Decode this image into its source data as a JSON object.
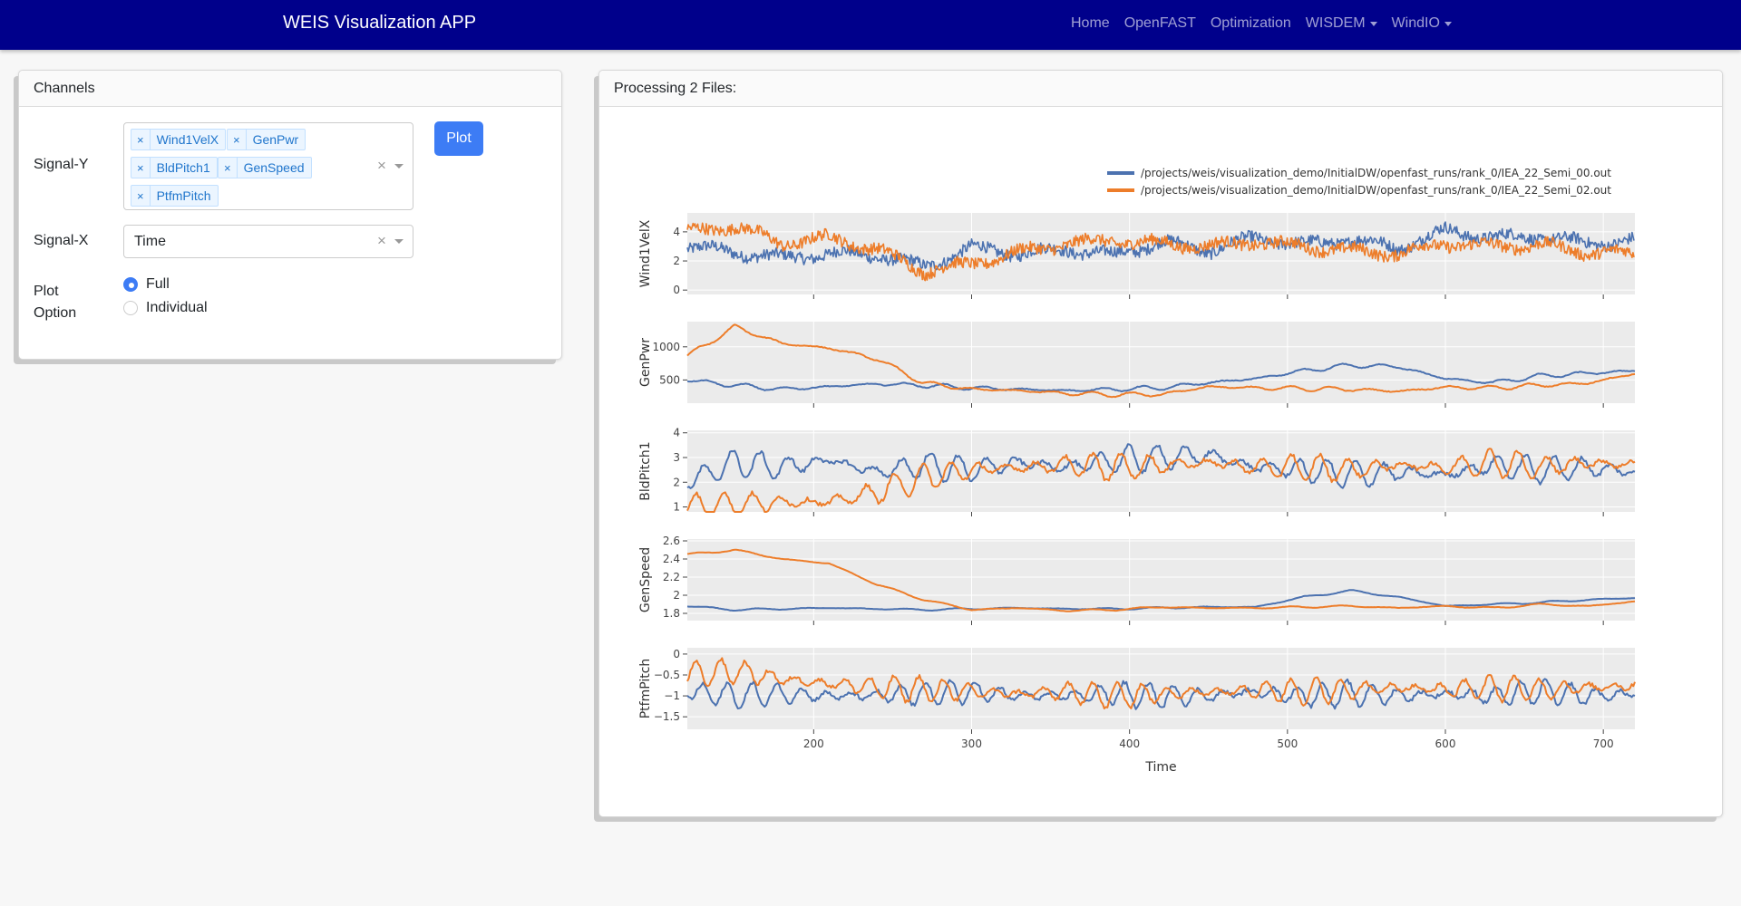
{
  "app": {
    "title": "WEIS Visualization APP",
    "nav": [
      {
        "label": "Home",
        "dropdown": false
      },
      {
        "label": "OpenFAST",
        "dropdown": false
      },
      {
        "label": "Optimization",
        "dropdown": false
      },
      {
        "label": "WISDEM",
        "dropdown": true
      },
      {
        "label": "WindIO",
        "dropdown": true
      }
    ]
  },
  "channels": {
    "header": "Channels",
    "signal_y": {
      "label": "Signal-Y",
      "selected": [
        "Wind1VelX",
        "GenPwr",
        "BldPitch1",
        "GenSpeed",
        "PtfmPitch"
      ]
    },
    "signal_x": {
      "label": "Signal-X",
      "selected": "Time"
    },
    "plot_button": "Plot",
    "plot_option": {
      "label_line1": "Plot",
      "label_line2": "Option",
      "options": [
        "Full",
        "Individual"
      ],
      "selected": "Full"
    }
  },
  "plot_panel": {
    "header": "Processing 2 Files:",
    "colors": {
      "series_0": "#4c72b0",
      "series_1": "#ed7d2a"
    },
    "legend_placement": "top-right"
  },
  "chart_data": {
    "type": "line",
    "layout": "stacked-subplots",
    "shared_x": true,
    "xlabel": "Time",
    "xlim": [
      120,
      720
    ],
    "xticks": [
      200,
      300,
      400,
      500,
      600,
      700
    ],
    "grid": true,
    "legend": [
      "/projects/weis/visualization_demo/InitialDW/openfast_runs/rank_0/IEA_22_Semi_00.out",
      "/projects/weis/visualization_demo/InitialDW/openfast_runs/rank_0/IEA_22_Semi_02.out"
    ],
    "subplots": [
      {
        "ylabel": "Wind1VelX",
        "ylim": [
          -0.3,
          5.3
        ],
        "yticks": [
          {
            "v": 0,
            "t": "0"
          },
          {
            "v": 2,
            "t": "2"
          },
          {
            "v": 4,
            "t": "4"
          }
        ],
        "series": [
          {
            "x": [
              120,
              150,
              180,
              210,
              240,
              270,
              300,
              330,
              360,
              390,
              420,
              450,
              480,
              510,
              540,
              570,
              600,
              630,
              660,
              690,
              720
            ],
            "y": [
              3.0,
              2.6,
              2.2,
              2.5,
              2.4,
              1.6,
              2.9,
              2.5,
              2.8,
              2.4,
              3.3,
              2.7,
              3.6,
              3.1,
              3.5,
              2.9,
              4.1,
              3.6,
              3.7,
              3.2,
              3.4
            ]
          },
          {
            "x": [
              120,
              150,
              180,
              210,
              240,
              270,
              300,
              330,
              360,
              390,
              420,
              450,
              480,
              510,
              540,
              570,
              600,
              630,
              660,
              690,
              720
            ],
            "y": [
              4.0,
              4.4,
              3.2,
              3.6,
              2.8,
              1.3,
              1.8,
              2.6,
              3.2,
              3.4,
              3.2,
              3.0,
              3.3,
              3.0,
              2.7,
              2.5,
              3.2,
              3.0,
              3.1,
              2.6,
              2.5
            ]
          }
        ]
      },
      {
        "ylabel": "GenPwr",
        "ylim": [
          150,
          1380
        ],
        "yticks": [
          {
            "v": 500,
            "t": "500"
          },
          {
            "v": 1000,
            "t": "1000"
          }
        ],
        "series": [
          {
            "x": [
              120,
              150,
              180,
              210,
              240,
              270,
              300,
              330,
              360,
              390,
              420,
              450,
              480,
              510,
              540,
              570,
              600,
              630,
              660,
              690,
              720
            ],
            "y": [
              500,
              420,
              360,
              400,
              440,
              420,
              380,
              360,
              340,
              360,
              380,
              460,
              520,
              640,
              720,
              700,
              520,
              460,
              560,
              600,
              640
            ]
          },
          {
            "x": [
              120,
              150,
              180,
              210,
              240,
              270,
              300,
              330,
              360,
              390,
              420,
              450,
              480,
              510,
              540,
              570,
              600,
              630,
              660,
              690,
              720
            ],
            "y": [
              860,
              1300,
              1050,
              980,
              820,
              450,
              360,
              340,
              300,
              280,
              280,
              400,
              380,
              370,
              360,
              330,
              390,
              380,
              420,
              450,
              600
            ]
          }
        ]
      },
      {
        "ylabel": "BldPitch1",
        "ylim": [
          0.8,
          4.1
        ],
        "yticks": [
          {
            "v": 1,
            "t": "1"
          },
          {
            "v": 2,
            "t": "2"
          },
          {
            "v": 3,
            "t": "3"
          },
          {
            "v": 4,
            "t": "4"
          }
        ],
        "series": [
          {
            "x": [
              120,
              150,
              180,
              210,
              240,
              270,
              300,
              330,
              360,
              390,
              420,
              450,
              480,
              510,
              540,
              570,
              600,
              630,
              660,
              690,
              720
            ],
            "y": [
              2.0,
              2.8,
              2.6,
              2.9,
              2.4,
              2.7,
              2.5,
              2.8,
              2.6,
              2.9,
              3.0,
              3.1,
              2.6,
              2.5,
              2.3,
              2.4,
              2.3,
              2.7,
              2.5,
              2.6,
              2.4
            ]
          },
          {
            "x": [
              120,
              150,
              180,
              210,
              240,
              270,
              300,
              330,
              360,
              390,
              420,
              450,
              480,
              510,
              540,
              570,
              600,
              630,
              660,
              690,
              720
            ],
            "y": [
              1.0,
              1.1,
              1.2,
              1.2,
              1.6,
              2.2,
              2.5,
              2.6,
              2.7,
              2.6,
              2.7,
              2.8,
              2.6,
              2.6,
              2.5,
              2.7,
              2.6,
              2.8,
              2.6,
              2.8,
              2.7
            ]
          }
        ]
      },
      {
        "ylabel": "GenSpeed",
        "ylim": [
          1.72,
          2.62
        ],
        "yticks": [
          {
            "v": 1.8,
            "t": "1.8"
          },
          {
            "v": 2.0,
            "t": "2"
          },
          {
            "v": 2.2,
            "t": "2.2"
          },
          {
            "v": 2.4,
            "t": "2.4"
          },
          {
            "v": 2.6,
            "t": "2.6"
          }
        ],
        "series": [
          {
            "x": [
              120,
              150,
              180,
              210,
              240,
              270,
              300,
              330,
              360,
              390,
              420,
              450,
              480,
              510,
              540,
              570,
              600,
              630,
              660,
              690,
              720
            ],
            "y": [
              1.88,
              1.84,
              1.85,
              1.86,
              1.85,
              1.84,
              1.85,
              1.86,
              1.85,
              1.85,
              1.86,
              1.87,
              1.87,
              1.98,
              2.05,
              1.98,
              1.88,
              1.9,
              1.92,
              1.95,
              1.97
            ]
          },
          {
            "x": [
              120,
              150,
              180,
              210,
              240,
              270,
              300,
              330,
              360,
              390,
              420,
              450,
              480,
              510,
              540,
              570,
              600,
              630,
              660,
              690,
              720
            ],
            "y": [
              2.45,
              2.5,
              2.4,
              2.35,
              2.12,
              1.95,
              1.84,
              1.86,
              1.83,
              1.84,
              1.87,
              1.86,
              1.86,
              1.87,
              1.88,
              1.86,
              1.88,
              1.86,
              1.9,
              1.88,
              1.93
            ]
          }
        ]
      },
      {
        "ylabel": "PtfmPitch",
        "ylim": [
          -1.8,
          0.15
        ],
        "yticks": [
          {
            "v": -1.5,
            "t": "−1.5"
          },
          {
            "v": -1,
            "t": "−1"
          },
          {
            "v": -0.5,
            "t": "−0.5"
          },
          {
            "v": 0,
            "t": "0"
          }
        ],
        "series": [
          {
            "x": [
              120,
              150,
              180,
              210,
              240,
              270,
              300,
              330,
              360,
              390,
              420,
              450,
              480,
              510,
              540,
              570,
              600,
              630,
              660,
              690,
              720
            ],
            "y": [
              -0.9,
              -1.0,
              -0.95,
              -1.0,
              -1.0,
              -0.95,
              -0.9,
              -1.0,
              -1.0,
              -0.95,
              -1.0,
              -1.0,
              -0.9,
              -1.0,
              -0.95,
              -1.0,
              -0.95,
              -1.0,
              -0.9,
              -1.0,
              -0.95
            ]
          },
          {
            "x": [
              120,
              150,
              180,
              210,
              240,
              270,
              300,
              330,
              360,
              390,
              420,
              450,
              480,
              510,
              540,
              570,
              600,
              630,
              660,
              690,
              720
            ],
            "y": [
              -0.5,
              -0.4,
              -0.6,
              -0.7,
              -0.8,
              -0.85,
              -0.9,
              -0.95,
              -0.9,
              -1.0,
              -0.95,
              -0.9,
              -0.85,
              -0.9,
              -0.85,
              -0.8,
              -0.85,
              -0.8,
              -0.85,
              -0.8,
              -0.75
            ]
          }
        ]
      }
    ]
  }
}
